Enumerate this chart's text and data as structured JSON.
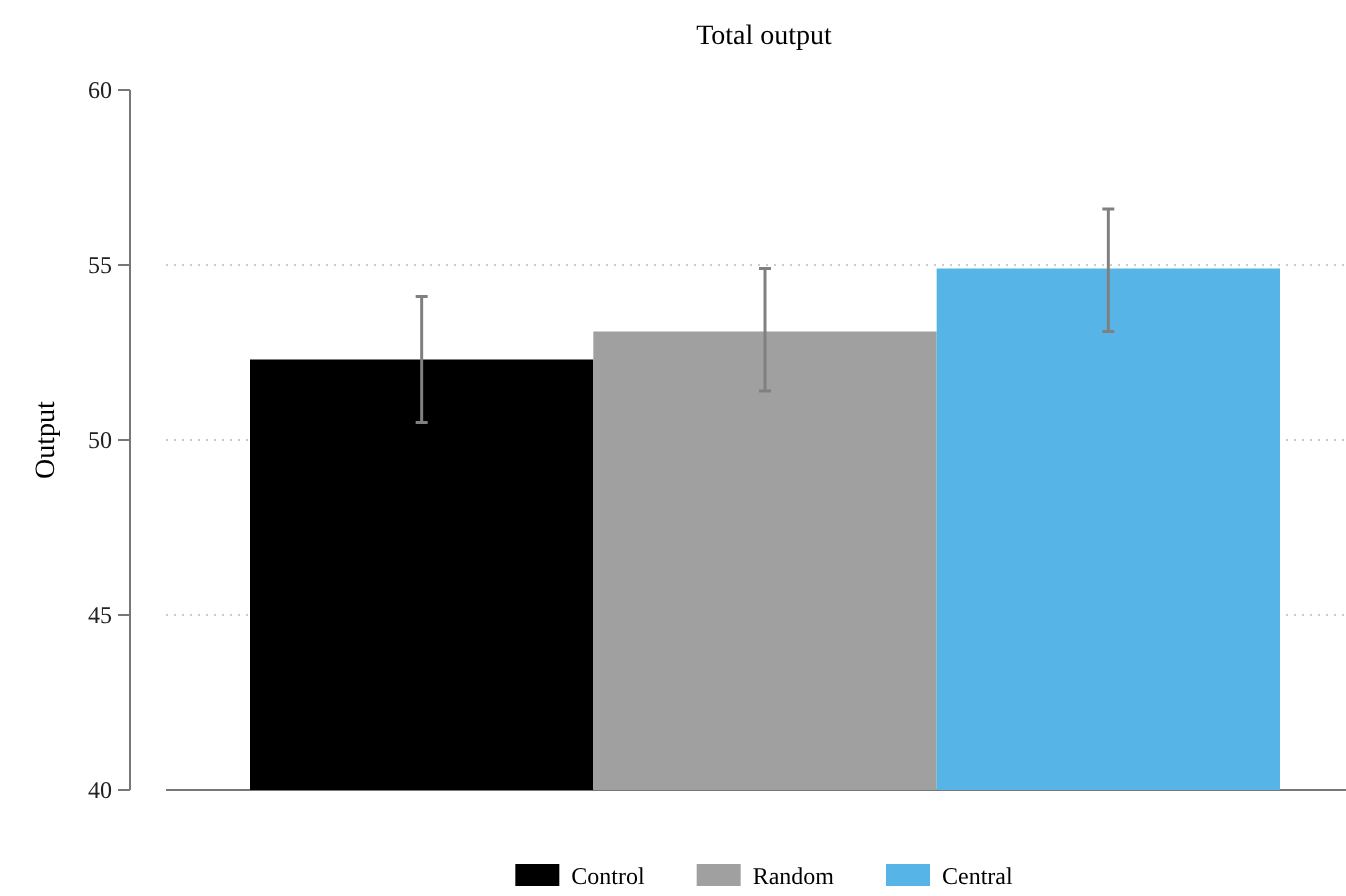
{
  "chart_data": {
    "type": "bar",
    "title": "Total output",
    "ylabel": "Output",
    "categories": [
      null
    ],
    "series": [
      {
        "name": "Control",
        "color": "#000000",
        "values": [
          52.3
        ],
        "errors": [
          [
            50.5,
            54.1
          ]
        ]
      },
      {
        "name": "Random",
        "color": "#a0a0a0",
        "values": [
          53.1
        ],
        "errors": [
          [
            51.4,
            54.9
          ]
        ]
      },
      {
        "name": "Central",
        "color": "#56b4e6",
        "values": [
          54.9
        ],
        "errors": [
          [
            53.1,
            56.6
          ]
        ]
      }
    ],
    "ylim": [
      40,
      60
    ],
    "yticks": [
      40,
      45,
      50,
      55,
      60
    ],
    "grid": "y",
    "legend": "bottom"
  }
}
